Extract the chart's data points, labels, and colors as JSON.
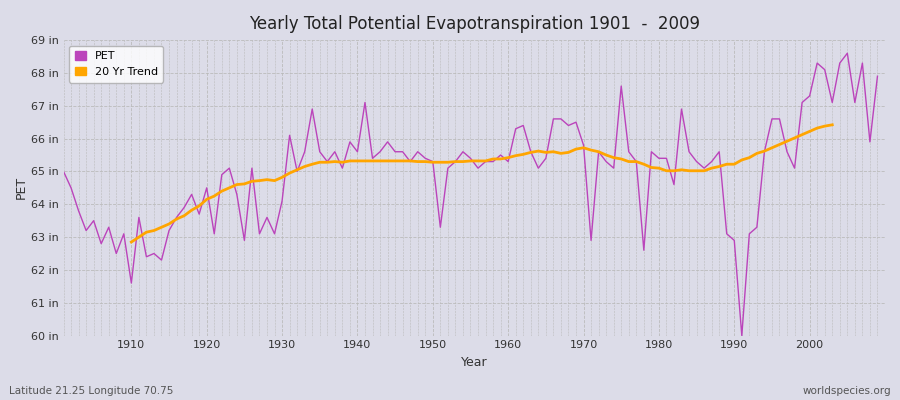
{
  "title": "Yearly Total Potential Evapotranspiration 1901  -  2009",
  "xlabel": "Year",
  "ylabel": "PET",
  "subtitle_left": "Latitude 21.25 Longitude 70.75",
  "subtitle_right": "worldspecies.org",
  "pet_color": "#bb44bb",
  "trend_color": "#ffa500",
  "background_color": "#dcdce8",
  "ylim": [
    60,
    69
  ],
  "yticks": [
    60,
    61,
    62,
    63,
    64,
    65,
    66,
    67,
    68,
    69
  ],
  "ytick_labels": [
    "60 in",
    "61 in",
    "62 in",
    "63 in",
    "64 in",
    "65 in",
    "66 in",
    "67 in",
    "68 in",
    "69 in"
  ],
  "xlim": [
    1901,
    2010
  ],
  "xtick_positions": [
    1910,
    1920,
    1930,
    1940,
    1950,
    1960,
    1970,
    1980,
    1990,
    2000
  ],
  "years": [
    1901,
    1902,
    1903,
    1904,
    1905,
    1906,
    1907,
    1908,
    1909,
    1910,
    1911,
    1912,
    1913,
    1914,
    1915,
    1916,
    1917,
    1918,
    1919,
    1920,
    1921,
    1922,
    1923,
    1924,
    1925,
    1926,
    1927,
    1928,
    1929,
    1930,
    1931,
    1932,
    1933,
    1934,
    1935,
    1936,
    1937,
    1938,
    1939,
    1940,
    1941,
    1942,
    1943,
    1944,
    1945,
    1946,
    1947,
    1948,
    1949,
    1950,
    1951,
    1952,
    1953,
    1954,
    1955,
    1956,
    1957,
    1958,
    1959,
    1960,
    1961,
    1962,
    1963,
    1964,
    1965,
    1966,
    1967,
    1968,
    1969,
    1970,
    1971,
    1972,
    1973,
    1974,
    1975,
    1976,
    1977,
    1978,
    1979,
    1980,
    1981,
    1982,
    1983,
    1984,
    1985,
    1986,
    1987,
    1988,
    1989,
    1990,
    1991,
    1992,
    1993,
    1994,
    1995,
    1996,
    1997,
    1998,
    1999,
    2000,
    2001,
    2002,
    2003,
    2004,
    2005,
    2006,
    2007,
    2008,
    2009
  ],
  "pet": [
    65.0,
    64.5,
    63.8,
    63.2,
    63.5,
    62.8,
    63.3,
    62.5,
    63.1,
    61.6,
    63.6,
    62.4,
    62.5,
    62.3,
    63.2,
    63.6,
    63.9,
    64.3,
    63.7,
    64.5,
    63.1,
    64.9,
    65.1,
    64.3,
    62.9,
    65.1,
    63.1,
    63.6,
    63.1,
    64.1,
    66.1,
    65.0,
    65.6,
    66.9,
    65.6,
    65.3,
    65.6,
    65.1,
    65.9,
    65.6,
    67.1,
    65.4,
    65.6,
    65.9,
    65.6,
    65.6,
    65.3,
    65.6,
    65.4,
    65.3,
    63.3,
    65.1,
    65.3,
    65.6,
    65.4,
    65.1,
    65.3,
    65.3,
    65.5,
    65.3,
    66.3,
    66.4,
    65.6,
    65.1,
    65.4,
    66.6,
    66.6,
    66.4,
    66.5,
    65.8,
    62.9,
    65.6,
    65.3,
    65.1,
    67.6,
    65.6,
    65.3,
    62.6,
    65.6,
    65.4,
    65.4,
    64.6,
    66.9,
    65.6,
    65.3,
    65.1,
    65.3,
    65.6,
    63.1,
    62.9,
    60.0,
    63.1,
    63.3,
    65.6,
    66.6,
    66.6,
    65.6,
    65.1,
    67.1,
    67.3,
    68.3,
    68.1,
    67.1,
    68.3,
    68.6,
    67.1,
    68.3,
    65.9,
    67.9
  ],
  "trend": [
    null,
    null,
    null,
    null,
    null,
    null,
    null,
    null,
    null,
    62.85,
    63.0,
    63.15,
    63.2,
    63.3,
    63.4,
    63.55,
    63.65,
    63.82,
    63.95,
    64.15,
    64.25,
    64.4,
    64.5,
    64.6,
    64.62,
    64.7,
    64.72,
    64.75,
    64.72,
    64.82,
    64.95,
    65.05,
    65.15,
    65.22,
    65.28,
    65.28,
    65.3,
    65.28,
    65.32,
    65.32,
    65.32,
    65.32,
    65.32,
    65.32,
    65.32,
    65.32,
    65.32,
    65.3,
    65.3,
    65.28,
    65.28,
    65.28,
    65.3,
    65.3,
    65.32,
    65.32,
    65.32,
    65.38,
    65.38,
    65.42,
    65.48,
    65.52,
    65.58,
    65.62,
    65.58,
    65.6,
    65.55,
    65.58,
    65.68,
    65.72,
    65.65,
    65.6,
    65.5,
    65.42,
    65.38,
    65.3,
    65.3,
    65.22,
    65.12,
    65.1,
    65.02,
    65.02,
    65.05,
    65.02,
    65.02,
    65.02,
    65.1,
    65.15,
    65.22,
    65.22,
    65.35,
    65.42,
    65.55,
    65.62,
    65.72,
    65.82,
    65.92,
    66.02,
    66.12,
    66.22,
    66.32,
    66.38,
    66.42,
    null,
    null,
    null,
    null,
    null,
    null
  ]
}
